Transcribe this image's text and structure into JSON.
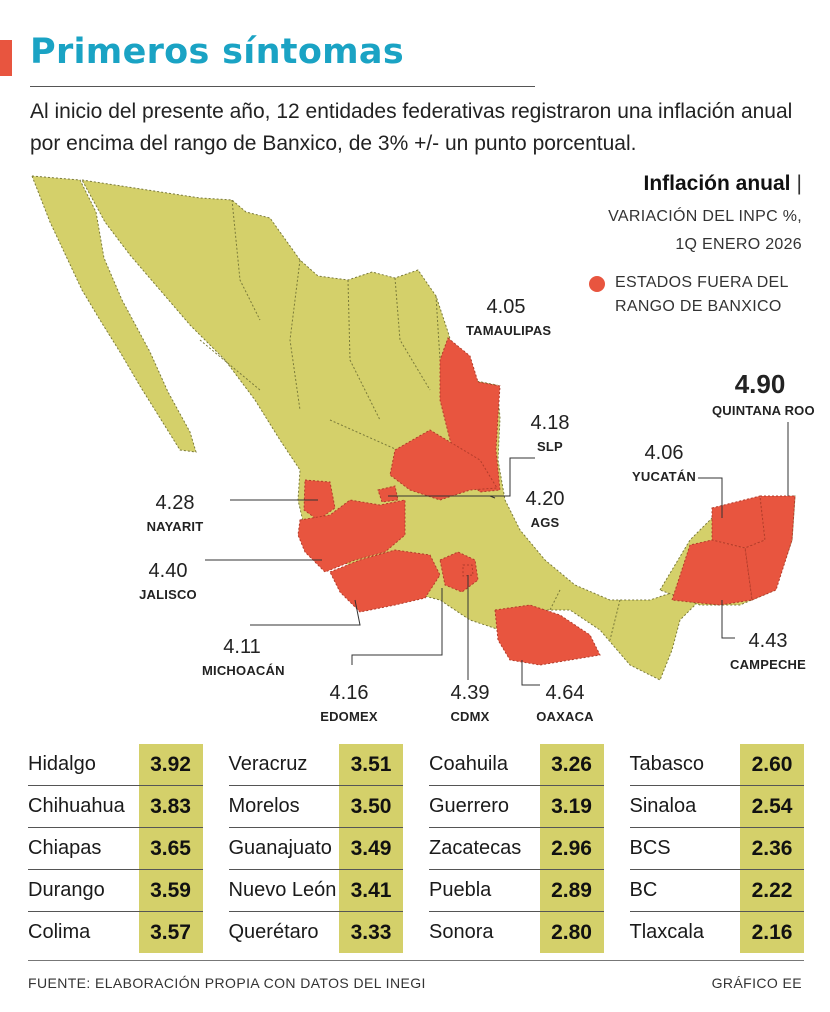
{
  "header": {
    "title": "Primeros síntomas",
    "subtitle": "Al inicio del presente año, 12 entidades federativas registraron una inflación anual por encima del rango de Banxico, de 3% +/- un punto porcentual."
  },
  "legend": {
    "title": "Inflación anual",
    "separator": "|",
    "unit_line1": "VARIACIÓN DEL INPC %,",
    "unit_line2": "1Q ENERO 2026",
    "red_line1": "ESTADOS FUERA DEL",
    "red_line2": "RANGO DE BANXICO"
  },
  "colors": {
    "accent_title": "#1aa3c4",
    "red_states": "#e8553f",
    "base_states": "#d4d06a",
    "value_cells": "#d4d06a"
  },
  "map": {
    "callouts": [
      {
        "name": "TAMAULIPAS",
        "value": "4.05"
      },
      {
        "name": "SLP",
        "value": "4.18"
      },
      {
        "name": "AGS",
        "value": "4.20"
      },
      {
        "name": "NAYARIT",
        "value": "4.28"
      },
      {
        "name": "JALISCO",
        "value": "4.40"
      },
      {
        "name": "MICHOACÁN",
        "value": "4.11"
      },
      {
        "name": "EDOMEX",
        "value": "4.16"
      },
      {
        "name": "CDMX",
        "value": "4.39"
      },
      {
        "name": "OAXACA",
        "value": "4.64"
      },
      {
        "name": "CAMPECHE",
        "value": "4.43"
      },
      {
        "name": "YUCATÁN",
        "value": "4.06"
      },
      {
        "name": "QUINTANA ROO",
        "value": "4.90"
      }
    ]
  },
  "table": {
    "columns": [
      [
        {
          "state": "Hidalgo",
          "value": "3.92"
        },
        {
          "state": "Chihuahua",
          "value": "3.83"
        },
        {
          "state": "Chiapas",
          "value": "3.65"
        },
        {
          "state": "Durango",
          "value": "3.59"
        },
        {
          "state": "Colima",
          "value": "3.57"
        }
      ],
      [
        {
          "state": "Veracruz",
          "value": "3.51"
        },
        {
          "state": "Morelos",
          "value": "3.50"
        },
        {
          "state": "Guanajuato",
          "value": "3.49"
        },
        {
          "state": "Nuevo León",
          "value": "3.41"
        },
        {
          "state": "Querétaro",
          "value": "3.33"
        }
      ],
      [
        {
          "state": "Coahuila",
          "value": "3.26"
        },
        {
          "state": "Guerrero",
          "value": "3.19"
        },
        {
          "state": "Zacatecas",
          "value": "2.96"
        },
        {
          "state": "Puebla",
          "value": "2.89"
        },
        {
          "state": "Sonora",
          "value": "2.80"
        }
      ],
      [
        {
          "state": "Tabasco",
          "value": "2.60"
        },
        {
          "state": "Sinaloa",
          "value": "2.54"
        },
        {
          "state": "BCS",
          "value": "2.36"
        },
        {
          "state": "BC",
          "value": "2.22"
        },
        {
          "state": "Tlaxcala",
          "value": "2.16"
        }
      ]
    ]
  },
  "footer": {
    "source": "FUENTE: ELABORACIÓN PROPIA CON DATOS DEL INEGI",
    "credit": "GRÁFICO EE"
  }
}
